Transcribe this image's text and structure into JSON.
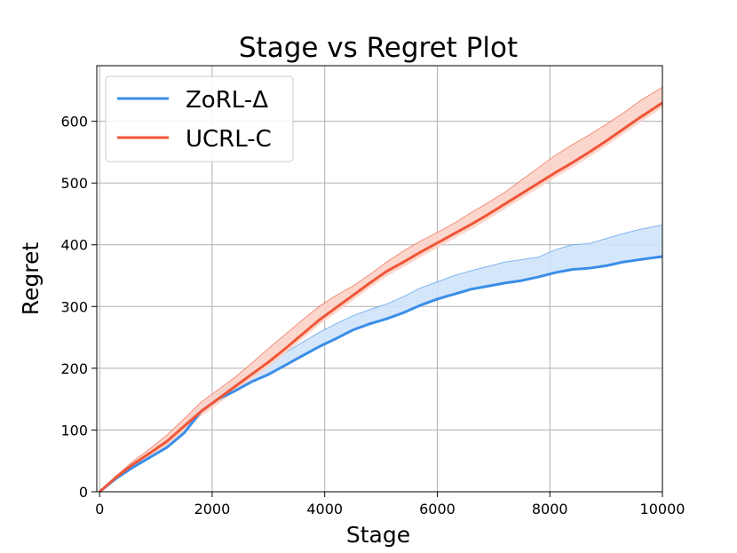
{
  "chart_data": {
    "type": "line",
    "title": "Stage vs Regret Plot",
    "xlabel": "Stage",
    "ylabel": "Regret",
    "xlim": [
      -50,
      10000
    ],
    "ylim": [
      0,
      690
    ],
    "xticks": [
      0,
      2000,
      4000,
      6000,
      8000,
      10000
    ],
    "yticks": [
      0,
      100,
      200,
      300,
      400,
      500,
      600
    ],
    "grid": true,
    "legend_position": "top-left",
    "series": [
      {
        "name": "ZoRL-Δ",
        "color": "#3a8ee8",
        "fill_color": "#cfe3fa",
        "x": [
          0,
          300,
          600,
          900,
          1200,
          1500,
          1800,
          2100,
          2400,
          2700,
          3000,
          3300,
          3600,
          3900,
          4200,
          4500,
          4800,
          5100,
          5400,
          5700,
          6000,
          6300,
          6600,
          6900,
          7200,
          7500,
          7800,
          8100,
          8400,
          8700,
          9000,
          9300,
          9600,
          10000
        ],
        "values": [
          0,
          22,
          40,
          56,
          72,
          95,
          130,
          150,
          163,
          178,
          190,
          205,
          220,
          235,
          248,
          262,
          272,
          280,
          290,
          302,
          312,
          320,
          328,
          333,
          338,
          342,
          348,
          355,
          360,
          362,
          366,
          372,
          376,
          381
        ],
        "upper": [
          0,
          24,
          44,
          62,
          80,
          110,
          140,
          160,
          175,
          192,
          208,
          225,
          242,
          258,
          272,
          285,
          295,
          304,
          316,
          330,
          340,
          350,
          358,
          365,
          372,
          376,
          380,
          392,
          400,
          402,
          410,
          418,
          425,
          432
        ],
        "lower": [
          0,
          22,
          40,
          56,
          72,
          95,
          130,
          150,
          163,
          178,
          190,
          205,
          220,
          235,
          248,
          262,
          272,
          280,
          290,
          302,
          312,
          320,
          328,
          333,
          338,
          342,
          348,
          355,
          360,
          362,
          366,
          372,
          376,
          381
        ]
      },
      {
        "name": "UCRL-C",
        "color": "#ef5638",
        "fill_color": "#fbd1c6",
        "x": [
          0,
          300,
          600,
          900,
          1200,
          1500,
          1800,
          2100,
          2400,
          2700,
          3000,
          3300,
          3600,
          3900,
          4200,
          4500,
          4800,
          5100,
          5400,
          5700,
          6000,
          6300,
          6600,
          6900,
          7200,
          7500,
          7800,
          8100,
          8400,
          8700,
          9000,
          9300,
          9600,
          10000
        ],
        "values": [
          0,
          24,
          45,
          63,
          82,
          106,
          130,
          150,
          170,
          190,
          210,
          232,
          255,
          278,
          298,
          318,
          338,
          357,
          372,
          388,
          403,
          418,
          433,
          449,
          466,
          483,
          500,
          517,
          533,
          550,
          568,
          587,
          606,
          630
        ],
        "upper": [
          0,
          26,
          50,
          70,
          92,
          118,
          145,
          165,
          185,
          208,
          232,
          255,
          278,
          300,
          318,
          333,
          352,
          372,
          390,
          406,
          420,
          435,
          452,
          468,
          485,
          505,
          525,
          545,
          562,
          578,
          595,
          613,
          633,
          655
        ],
        "lower": [
          0,
          22,
          41,
          58,
          75,
          98,
          122,
          142,
          162,
          182,
          202,
          224,
          247,
          270,
          290,
          310,
          330,
          349,
          364,
          380,
          395,
          410,
          425,
          441,
          458,
          475,
          492,
          509,
          525,
          542,
          560,
          579,
          598,
          622
        ]
      }
    ]
  }
}
